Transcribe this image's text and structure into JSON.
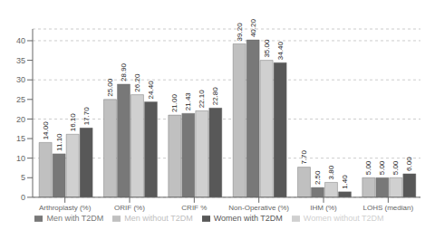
{
  "chart_data": {
    "type": "bar",
    "categories": [
      "Arthroplasty (%)",
      "ORIF (%)",
      "CRIF %",
      "Non-Operative (%)",
      "IHM (%)",
      "LOHS (median)"
    ],
    "series": [
      {
        "name": "Men without T2DM",
        "color": "#c0c0c0",
        "values": [
          14.0,
          25.0,
          21.0,
          39.2,
          7.7,
          5.0
        ],
        "value_labels": [
          "14.00",
          "25.00",
          "21.00",
          "39.20",
          "7.70",
          "5.00"
        ]
      },
      {
        "name": "Men with T2DM",
        "color": "#787878",
        "values": [
          11.1,
          28.9,
          21.43,
          40.2,
          2.5,
          5.0
        ],
        "value_labels": [
          "11.10",
          "28.90",
          "21.43",
          "40.20",
          "2.50",
          "5.00"
        ]
      },
      {
        "name": "Women without T2DM",
        "color": "#d0d0d0",
        "values": [
          16.1,
          26.2,
          22.1,
          35.0,
          3.8,
          5.0
        ],
        "value_labels": [
          "16.10",
          "26.20",
          "22.10",
          "35.00",
          "3.80",
          "5.00"
        ]
      },
      {
        "name": "Women with T2DM",
        "color": "#585858",
        "values": [
          17.7,
          24.4,
          22.8,
          34.4,
          1.4,
          6.0
        ],
        "value_labels": [
          "17.70",
          "24.40",
          "22.80",
          "34.40",
          "1.40",
          "6.00"
        ]
      }
    ],
    "ylim": [
      0,
      43
    ],
    "yticks": [
      0,
      5,
      10,
      15,
      20,
      25,
      30,
      35,
      40
    ],
    "grid": true,
    "legend": "bottom",
    "data_labels": true
  }
}
